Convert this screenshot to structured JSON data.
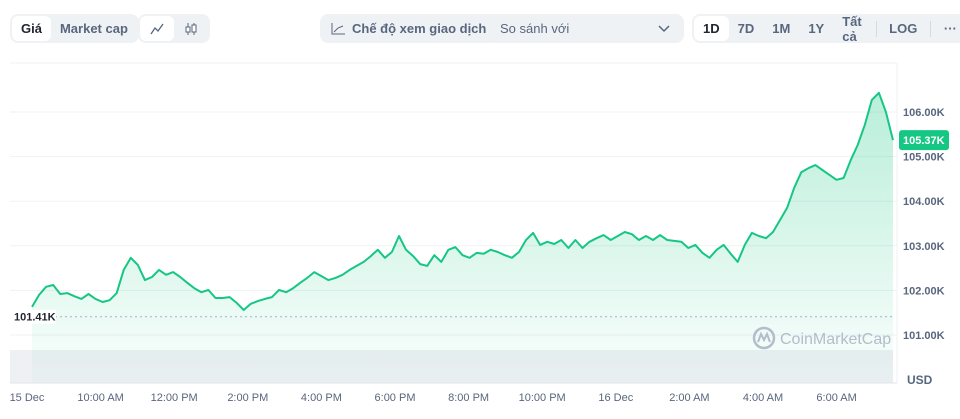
{
  "toolbar": {
    "metric_tabs": [
      "Giá",
      "Market cap"
    ],
    "chart_type_icons": [
      "line-chart-icon",
      "candlestick-icon"
    ],
    "trading_view_label": "Chế độ xem giao dịch",
    "compare_placeholder": "So sánh với",
    "ranges": [
      "1D",
      "7D",
      "1M",
      "1Y",
      "Tất cả"
    ],
    "log_label": "LOG",
    "more_label": "···"
  },
  "colors": {
    "line": "#16c784",
    "badge": "#16c784",
    "grid": "#eff2f5"
  },
  "watermark": "CoinMarketCap",
  "chart_data": {
    "type": "area",
    "currency_label": "USD",
    "y_ticks": [
      "101.00K",
      "102.00K",
      "103.00K",
      "104.00K",
      "105.00K",
      "106.00K"
    ],
    "y_tick_values": [
      101,
      102,
      103,
      104,
      105,
      106
    ],
    "ylim": [
      100.6,
      106.8
    ],
    "x_ticks": [
      "15 Dec",
      "10:00 AM",
      "12:00 PM",
      "2:00 PM",
      "4:00 PM",
      "6:00 PM",
      "8:00 PM",
      "10:00 PM",
      "16 Dec",
      "2:00 AM",
      "4:00 AM",
      "6:00 AM"
    ],
    "current_price_label": "105.37K",
    "open_price_label": "101.41K",
    "open_price": 101.41,
    "unit": "K USD",
    "values": [
      101.63,
      101.9,
      102.08,
      102.12,
      101.92,
      101.94,
      101.87,
      101.81,
      101.92,
      101.81,
      101.74,
      101.78,
      101.94,
      102.46,
      102.73,
      102.57,
      102.23,
      102.3,
      102.46,
      102.35,
      102.41,
      102.3,
      102.17,
      102.05,
      101.96,
      102.01,
      101.83,
      101.83,
      101.85,
      101.72,
      101.56,
      101.7,
      101.76,
      101.81,
      101.85,
      102.01,
      101.96,
      102.05,
      102.17,
      102.28,
      102.41,
      102.32,
      102.23,
      102.28,
      102.35,
      102.46,
      102.55,
      102.64,
      102.77,
      102.91,
      102.73,
      102.86,
      103.22,
      102.91,
      102.77,
      102.59,
      102.55,
      102.79,
      102.64,
      102.91,
      102.97,
      102.79,
      102.73,
      102.84,
      102.82,
      102.91,
      102.86,
      102.79,
      102.73,
      102.86,
      103.13,
      103.29,
      103.02,
      103.09,
      103.04,
      103.13,
      102.95,
      103.13,
      102.95,
      103.09,
      103.17,
      103.24,
      103.13,
      103.22,
      103.31,
      103.26,
      103.13,
      103.22,
      103.13,
      103.24,
      103.13,
      103.11,
      103.09,
      102.95,
      103.02,
      102.84,
      102.73,
      102.91,
      103.02,
      102.82,
      102.64,
      103.02,
      103.29,
      103.22,
      103.17,
      103.31,
      103.58,
      103.85,
      104.3,
      104.65,
      104.74,
      104.81,
      104.7,
      104.59,
      104.48,
      104.52,
      104.92,
      105.26,
      105.71,
      106.27,
      106.43,
      106.0,
      105.37
    ]
  }
}
